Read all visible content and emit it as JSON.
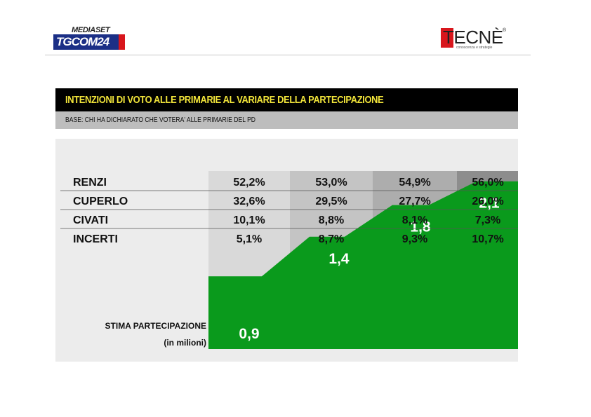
{
  "logos": {
    "left_top": "MEDIASET",
    "left_main": "TGCOM",
    "left_num": "24",
    "right_main": "TECNÈ",
    "right_sub": "conoscenza e strategie",
    "right_reg": "®"
  },
  "header": {
    "title": "INTENZIONI DI VOTO ALLE PRIMARIE AL VARIARE DELLA PARTECIPAZIONE",
    "base": "BASE: CHI HA DICHIARATO CHE VOTERA' ALLE PRIMARIE DEL PD"
  },
  "colors": {
    "title_text": "#f2e53a",
    "green": "#0a9a1c",
    "col_shades": [
      "#d9d9d9",
      "#c4c4c4",
      "#adadad",
      "#8d8d8d"
    ],
    "panel": "#ececec"
  },
  "chart_data": {
    "type": "table",
    "rows": [
      {
        "label": "RENZI",
        "values": [
          "52,2%",
          "53,0%",
          "54,9%",
          "56,0%"
        ]
      },
      {
        "label": "CUPERLO",
        "values": [
          "32,6%",
          "29,5%",
          "27,7%",
          "26,0%"
        ]
      },
      {
        "label": "CIVATI",
        "values": [
          "10,1%",
          "8,8%",
          "8,1%",
          "7,3%"
        ]
      },
      {
        "label": "INCERTI",
        "values": [
          "5,1%",
          "8,7%",
          "9,3%",
          "10,7%"
        ]
      }
    ],
    "participation": {
      "label_line1": "STIMA PARTECIPAZIONE",
      "label_line2": "(in milioni)",
      "values": [
        0.9,
        1.4,
        1.8,
        2.1
      ],
      "labels": [
        "0,9",
        "1,4",
        "1,8",
        "2,1"
      ]
    }
  }
}
